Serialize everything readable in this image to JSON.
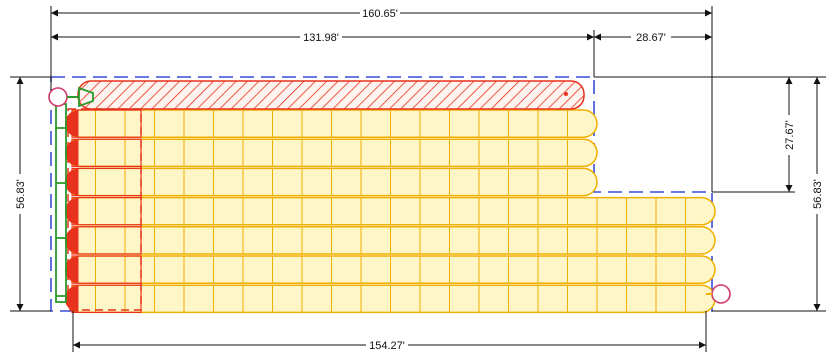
{
  "drawing": {
    "dimensions": {
      "overall_width": "160.65'",
      "left_section_width": "131.98'",
      "right_section_width": "28.67'",
      "bottom_width": "154.27'",
      "left_height": "56.83'",
      "right_height": "56.83'",
      "step_height": "27.67'"
    },
    "grid": {
      "upper_columns": 18,
      "upper_rows": 3,
      "lower_columns": 22,
      "lower_rows": 4
    },
    "colors": {
      "boundary": "#3a4fd8",
      "chamber_fill": "#fff6c8",
      "chamber_line": "#f0b000",
      "header_fill": "#ffe2dc",
      "header_line": "#e8321e",
      "manifold": "#2a9a2a",
      "port": "#d23a6a",
      "dim_line": "#111111"
    }
  }
}
